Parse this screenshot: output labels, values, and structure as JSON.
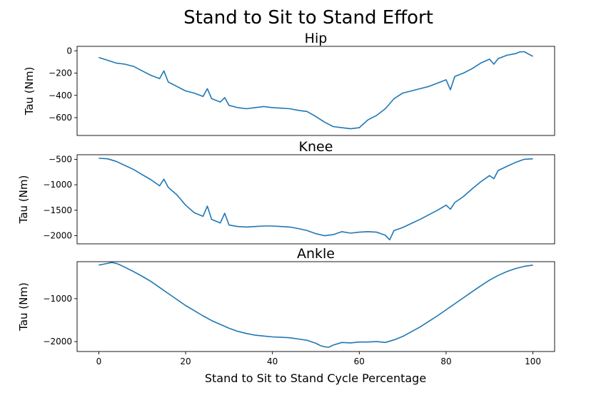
{
  "figure": {
    "title": "Stand to Sit to Stand Effort",
    "xlabel": "Stand to Sit to Stand Cycle Percentage"
  },
  "chart_data": [
    {
      "type": "line",
      "title": "Hip",
      "xlabel": "",
      "ylabel": "Tau (Nm)",
      "xlim": [
        -5,
        105
      ],
      "ylim": [
        -760,
        40
      ],
      "xticks": [],
      "yticks": [
        0,
        -200,
        -400,
        -600
      ],
      "ytick_labels": [
        "0",
        "−200",
        "−400",
        "−600"
      ],
      "line_color": "#1f77b4",
      "series": [
        {
          "x": [
            0,
            2,
            4,
            6,
            8,
            10,
            12,
            14,
            15,
            16,
            18,
            20,
            22,
            24,
            25,
            26,
            28,
            29,
            30,
            32,
            34,
            36,
            38,
            40,
            42,
            44,
            46,
            48,
            50,
            52,
            54,
            56,
            58,
            60,
            62,
            64,
            66,
            68,
            70,
            72,
            74,
            76,
            78,
            80,
            81,
            82,
            84,
            86,
            88,
            90,
            91,
            92,
            94,
            96,
            97,
            98,
            100
          ],
          "y": [
            -60,
            -85,
            -110,
            -120,
            -140,
            -180,
            -220,
            -250,
            -180,
            -280,
            -320,
            -360,
            -380,
            -410,
            -340,
            -430,
            -460,
            -420,
            -490,
            -510,
            -520,
            -510,
            -500,
            -510,
            -515,
            -520,
            -535,
            -545,
            -590,
            -640,
            -680,
            -690,
            -700,
            -690,
            -620,
            -580,
            -520,
            -430,
            -380,
            -360,
            -340,
            -320,
            -290,
            -260,
            -350,
            -230,
            -200,
            -160,
            -110,
            -75,
            -120,
            -70,
            -40,
            -25,
            -10,
            -8,
            -50
          ]
        }
      ]
    },
    {
      "type": "line",
      "title": "Knee",
      "xlabel": "",
      "ylabel": "Tau (Nm)",
      "xlim": [
        -5,
        105
      ],
      "ylim": [
        -2160,
        -410
      ],
      "xticks": [],
      "yticks": [
        -500,
        -1000,
        -1500,
        -2000
      ],
      "ytick_labels": [
        "−500",
        "−1000",
        "−1500",
        "−2000"
      ],
      "line_color": "#1f77b4",
      "series": [
        {
          "x": [
            0,
            2,
            4,
            6,
            8,
            10,
            12,
            14,
            15,
            16,
            18,
            20,
            22,
            24,
            25,
            26,
            28,
            29,
            30,
            32,
            34,
            36,
            38,
            40,
            42,
            44,
            46,
            48,
            50,
            52,
            54,
            56,
            58,
            60,
            62,
            64,
            66,
            67,
            68,
            70,
            72,
            74,
            76,
            78,
            80,
            81,
            82,
            84,
            86,
            88,
            90,
            91,
            92,
            94,
            96,
            98,
            100
          ],
          "y": [
            -480,
            -490,
            -540,
            -620,
            -700,
            -800,
            -900,
            -1020,
            -890,
            -1050,
            -1200,
            -1400,
            -1550,
            -1620,
            -1420,
            -1680,
            -1750,
            -1560,
            -1790,
            -1820,
            -1830,
            -1820,
            -1810,
            -1810,
            -1820,
            -1830,
            -1860,
            -1900,
            -1960,
            -2000,
            -1980,
            -1920,
            -1950,
            -1930,
            -1920,
            -1930,
            -1990,
            -2080,
            -1900,
            -1840,
            -1760,
            -1680,
            -1590,
            -1500,
            -1400,
            -1480,
            -1350,
            -1230,
            -1080,
            -940,
            -820,
            -880,
            -720,
            -640,
            -560,
            -500,
            -490
          ]
        }
      ]
    },
    {
      "type": "line",
      "title": "Ankle",
      "xlabel": "",
      "ylabel": "Tau (Nm)",
      "xlim": [
        -5,
        105
      ],
      "ylim": [
        -2230,
        -140
      ],
      "xticks": [
        0,
        20,
        40,
        60,
        80,
        100
      ],
      "xtick_labels": [
        "0",
        "20",
        "40",
        "60",
        "80",
        "100"
      ],
      "yticks": [
        -1000,
        -2000
      ],
      "ytick_labels": [
        "−1000",
        "−2000"
      ],
      "line_color": "#1f77b4",
      "series": [
        {
          "x": [
            0,
            1,
            2,
            3,
            4,
            5,
            6,
            8,
            10,
            12,
            14,
            16,
            18,
            20,
            22,
            24,
            26,
            28,
            30,
            32,
            34,
            36,
            38,
            40,
            42,
            44,
            46,
            48,
            50,
            51,
            52,
            53,
            54,
            56,
            58,
            60,
            62,
            64,
            66,
            68,
            70,
            72,
            74,
            76,
            78,
            80,
            82,
            84,
            86,
            88,
            90,
            92,
            94,
            96,
            98,
            100
          ],
          "y": [
            -220,
            -200,
            -180,
            -160,
            -180,
            -220,
            -270,
            -370,
            -480,
            -600,
            -740,
            -880,
            -1020,
            -1160,
            -1280,
            -1400,
            -1510,
            -1600,
            -1690,
            -1760,
            -1810,
            -1850,
            -1870,
            -1890,
            -1900,
            -1910,
            -1940,
            -1970,
            -2040,
            -2090,
            -2120,
            -2130,
            -2080,
            -2020,
            -2030,
            -2010,
            -2010,
            -2000,
            -2020,
            -1960,
            -1880,
            -1770,
            -1660,
            -1530,
            -1400,
            -1260,
            -1120,
            -980,
            -840,
            -700,
            -570,
            -460,
            -370,
            -300,
            -250,
            -220
          ]
        }
      ]
    }
  ]
}
